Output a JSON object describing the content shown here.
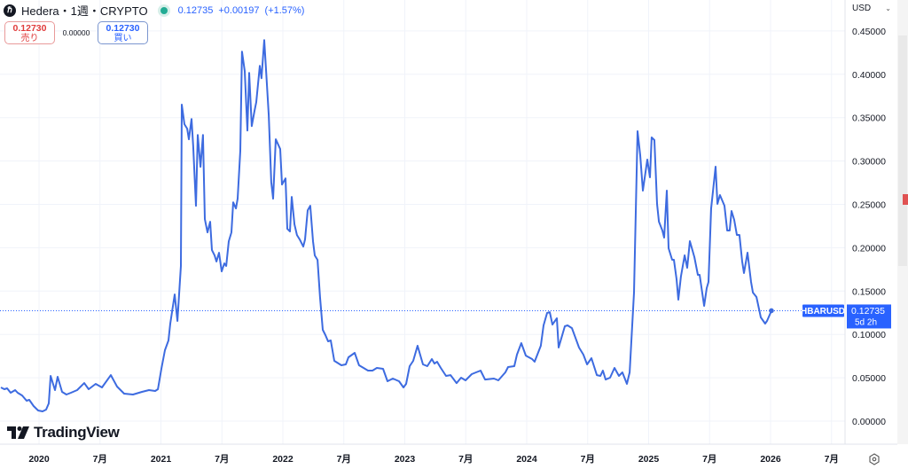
{
  "header": {
    "symbol": "Hedera・1週・CRYPTO",
    "logo_icon": "hedera-logo",
    "last_price": "0.12735",
    "change": "+0.00197",
    "change_pct": "(+1.57%)",
    "market_status_color": "#22ab94"
  },
  "trade": {
    "sell_price": "0.12730",
    "sell_label": "売り",
    "spread": "0.00000",
    "buy_price": "0.12730",
    "buy_label": "買い"
  },
  "currency": "USD",
  "brand": "TradingView",
  "price_label": {
    "ticker": "HBARUSD",
    "price": "0.12735",
    "countdown": "5d 2h"
  },
  "colors": {
    "line": "#3d6be0",
    "label_bg": "#2962ff",
    "sell": "#e03c3c",
    "buy": "#2962ff"
  },
  "chart_data": {
    "type": "line",
    "interval": "1週",
    "ylim": [
      0,
      0.45
    ],
    "grid": true,
    "y_ticks": [
      "0.45000",
      "0.40000",
      "0.35000",
      "0.30000",
      "0.25000",
      "0.20000",
      "0.15000",
      "0.10000",
      "0.05000",
      "0.00000"
    ],
    "x_ticks": [
      "2020",
      "7月",
      "2021",
      "7月",
      "2022",
      "7月",
      "2023",
      "7月",
      "2024",
      "7月",
      "2025",
      "7月",
      "2026",
      "7月"
    ],
    "series": [
      {
        "name": "HBARUSD",
        "points": [
          [
            2019.687,
            0.0389
          ],
          [
            2019.716,
            0.0368
          ],
          [
            2019.738,
            0.0378
          ],
          [
            2019.767,
            0.0327
          ],
          [
            2019.804,
            0.0358
          ],
          [
            2019.825,
            0.0327
          ],
          [
            2019.862,
            0.0296
          ],
          [
            2019.898,
            0.0235
          ],
          [
            2019.92,
            0.0245
          ],
          [
            2019.956,
            0.0174
          ],
          [
            2019.993,
            0.0123
          ],
          [
            2020.029,
            0.0112
          ],
          [
            2020.058,
            0.0133
          ],
          [
            2020.08,
            0.0204
          ],
          [
            2020.095,
            0.0521
          ],
          [
            2020.131,
            0.0358
          ],
          [
            2020.153,
            0.0511
          ],
          [
            2020.189,
            0.0337
          ],
          [
            2020.225,
            0.0307
          ],
          [
            2020.262,
            0.0327
          ],
          [
            2020.313,
            0.0358
          ],
          [
            2020.371,
            0.0439
          ],
          [
            2020.407,
            0.0368
          ],
          [
            2020.465,
            0.0429
          ],
          [
            2020.516,
            0.0389
          ],
          [
            2020.589,
            0.0531
          ],
          [
            2020.64,
            0.0399
          ],
          [
            2020.698,
            0.0317
          ],
          [
            2020.771,
            0.0307
          ],
          [
            2020.844,
            0.0337
          ],
          [
            2020.902,
            0.0358
          ],
          [
            2020.953,
            0.0348
          ],
          [
            2020.975,
            0.0368
          ],
          [
            2021.004,
            0.0603
          ],
          [
            2021.033,
            0.0818
          ],
          [
            2021.062,
            0.093
          ],
          [
            2021.076,
            0.1124
          ],
          [
            2021.113,
            0.1461
          ],
          [
            2021.135,
            0.1155
          ],
          [
            2021.164,
            0.1789
          ],
          [
            2021.171,
            0.365
          ],
          [
            2021.193,
            0.3424
          ],
          [
            2021.215,
            0.3373
          ],
          [
            2021.229,
            0.325
          ],
          [
            2021.251,
            0.3485
          ],
          [
            2021.265,
            0.3168
          ],
          [
            2021.287,
            0.2484
          ],
          [
            2021.302,
            0.3301
          ],
          [
            2021.324,
            0.2933
          ],
          [
            2021.345,
            0.3301
          ],
          [
            2021.36,
            0.233
          ],
          [
            2021.382,
            0.2177
          ],
          [
            2021.404,
            0.23
          ],
          [
            2021.418,
            0.1972
          ],
          [
            2021.44,
            0.1911
          ],
          [
            2021.455,
            0.184
          ],
          [
            2021.476,
            0.1942
          ],
          [
            2021.498,
            0.1727
          ],
          [
            2021.52,
            0.1819
          ],
          [
            2021.535,
            0.1789
          ],
          [
            2021.556,
            0.2075
          ],
          [
            2021.578,
            0.2177
          ],
          [
            2021.593,
            0.2524
          ],
          [
            2021.615,
            0.2453
          ],
          [
            2021.629,
            0.2565
          ],
          [
            2021.651,
            0.3117
          ],
          [
            2021.665,
            0.4262
          ],
          [
            2021.687,
            0.4037
          ],
          [
            2021.709,
            0.3352
          ],
          [
            2021.724,
            0.4016
          ],
          [
            2021.745,
            0.3403
          ],
          [
            2021.767,
            0.3577
          ],
          [
            2021.782,
            0.3679
          ],
          [
            2021.811,
            0.4098
          ],
          [
            2021.825,
            0.3955
          ],
          [
            2021.847,
            0.4395
          ],
          [
            2021.869,
            0.3884
          ],
          [
            2021.884,
            0.3526
          ],
          [
            2021.905,
            0.2759
          ],
          [
            2021.92,
            0.2565
          ],
          [
            2021.942,
            0.325
          ],
          [
            2021.978,
            0.3138
          ],
          [
            2021.993,
            0.2729
          ],
          [
            2022.022,
            0.28
          ],
          [
            2022.036,
            0.2218
          ],
          [
            2022.058,
            0.2187
          ],
          [
            2022.073,
            0.2586
          ],
          [
            2022.095,
            0.2269
          ],
          [
            2022.116,
            0.2146
          ],
          [
            2022.138,
            0.2095
          ],
          [
            2022.167,
            0.2013
          ],
          [
            2022.182,
            0.2095
          ],
          [
            2022.204,
            0.2432
          ],
          [
            2022.225,
            0.2484
          ],
          [
            2022.247,
            0.2075
          ],
          [
            2022.262,
            0.1911
          ],
          [
            2022.284,
            0.186
          ],
          [
            2022.305,
            0.1431
          ],
          [
            2022.327,
            0.1053
          ],
          [
            2022.349,
            0.0992
          ],
          [
            2022.371,
            0.092
          ],
          [
            2022.393,
            0.093
          ],
          [
            2022.422,
            0.0695
          ],
          [
            2022.458,
            0.0664
          ],
          [
            2022.48,
            0.0644
          ],
          [
            2022.516,
            0.0654
          ],
          [
            2022.538,
            0.0736
          ],
          [
            2022.589,
            0.0787
          ],
          [
            2022.625,
            0.0644
          ],
          [
            2022.662,
            0.0613
          ],
          [
            2022.698,
            0.0583
          ],
          [
            2022.735,
            0.0583
          ],
          [
            2022.771,
            0.0613
          ],
          [
            2022.822,
            0.0603
          ],
          [
            2022.858,
            0.046
          ],
          [
            2022.902,
            0.0491
          ],
          [
            2022.953,
            0.046
          ],
          [
            2022.989,
            0.0389
          ],
          [
            2023.011,
            0.0429
          ],
          [
            2023.04,
            0.0634
          ],
          [
            2023.069,
            0.0695
          ],
          [
            2023.105,
            0.0869
          ],
          [
            2023.149,
            0.0654
          ],
          [
            2023.185,
            0.0634
          ],
          [
            2023.222,
            0.0716
          ],
          [
            2023.244,
            0.0664
          ],
          [
            2023.265,
            0.0685
          ],
          [
            2023.295,
            0.0613
          ],
          [
            2023.338,
            0.0521
          ],
          [
            2023.375,
            0.0531
          ],
          [
            2023.425,
            0.0439
          ],
          [
            2023.462,
            0.0501
          ],
          [
            2023.498,
            0.047
          ],
          [
            2023.549,
            0.0542
          ],
          [
            2023.585,
            0.0562
          ],
          [
            2023.622,
            0.0583
          ],
          [
            2023.658,
            0.048
          ],
          [
            2023.731,
            0.0491
          ],
          [
            2023.767,
            0.047
          ],
          [
            2023.825,
            0.0562
          ],
          [
            2023.847,
            0.0624
          ],
          [
            2023.898,
            0.0634
          ],
          [
            2023.92,
            0.0767
          ],
          [
            2023.956,
            0.09
          ],
          [
            2023.993,
            0.0756
          ],
          [
            2024.044,
            0.0716
          ],
          [
            2024.065,
            0.0685
          ],
          [
            2024.116,
            0.0869
          ],
          [
            2024.138,
            0.1104
          ],
          [
            2024.167,
            0.1247
          ],
          [
            2024.189,
            0.1257
          ],
          [
            2024.211,
            0.1114
          ],
          [
            2024.247,
            0.1186
          ],
          [
            2024.262,
            0.0849
          ],
          [
            2024.313,
            0.1094
          ],
          [
            2024.335,
            0.1104
          ],
          [
            2024.371,
            0.1073
          ],
          [
            2024.429,
            0.0849
          ],
          [
            2024.465,
            0.0767
          ],
          [
            2024.495,
            0.0654
          ],
          [
            2024.531,
            0.0726
          ],
          [
            2024.575,
            0.0531
          ],
          [
            2024.604,
            0.0521
          ],
          [
            2024.625,
            0.0583
          ],
          [
            2024.647,
            0.048
          ],
          [
            2024.684,
            0.0501
          ],
          [
            2024.72,
            0.0613
          ],
          [
            2024.756,
            0.0521
          ],
          [
            2024.785,
            0.0562
          ],
          [
            2024.822,
            0.0429
          ],
          [
            2024.844,
            0.0562
          ],
          [
            2024.88,
            0.1482
          ],
          [
            2024.909,
            0.3344
          ],
          [
            2024.931,
            0.3067
          ],
          [
            2024.953,
            0.2658
          ],
          [
            2024.989,
            0.3016
          ],
          [
            2025.011,
            0.2812
          ],
          [
            2025.025,
            0.3272
          ],
          [
            2025.047,
            0.3241
          ],
          [
            2025.069,
            0.2505
          ],
          [
            2025.084,
            0.2301
          ],
          [
            2025.113,
            0.2198
          ],
          [
            2025.127,
            0.2117
          ],
          [
            2025.149,
            0.2658
          ],
          [
            2025.164,
            0.1994
          ],
          [
            2025.193,
            0.1861
          ],
          [
            2025.207,
            0.1861
          ],
          [
            2025.229,
            0.1636
          ],
          [
            2025.244,
            0.1401
          ],
          [
            2025.265,
            0.1667
          ],
          [
            2025.295,
            0.1912
          ],
          [
            2025.316,
            0.1769
          ],
          [
            2025.338,
            0.2076
          ],
          [
            2025.375,
            0.1892
          ],
          [
            2025.404,
            0.1687
          ],
          [
            2025.418,
            0.1687
          ],
          [
            2025.455,
            0.1329
          ],
          [
            2025.476,
            0.1534
          ],
          [
            2025.491,
            0.1605
          ],
          [
            2025.513,
            0.2454
          ],
          [
            2025.549,
            0.2935
          ],
          [
            2025.564,
            0.2505
          ],
          [
            2025.585,
            0.2607
          ],
          [
            2025.622,
            0.2485
          ],
          [
            2025.644,
            0.2198
          ],
          [
            2025.665,
            0.2198
          ],
          [
            2025.68,
            0.2423
          ],
          [
            2025.702,
            0.2321
          ],
          [
            2025.724,
            0.2147
          ],
          [
            2025.745,
            0.2147
          ],
          [
            2025.767,
            0.184
          ],
          [
            2025.782,
            0.1708
          ],
          [
            2025.811,
            0.1943
          ],
          [
            2025.84,
            0.1605
          ],
          [
            2025.855,
            0.1483
          ],
          [
            2025.884,
            0.1431
          ],
          [
            2025.92,
            0.1196
          ],
          [
            2025.956,
            0.1125
          ],
          [
            2025.971,
            0.1155
          ],
          [
            2026.007,
            0.12735
          ]
        ]
      }
    ],
    "last_value": 0.12735
  }
}
